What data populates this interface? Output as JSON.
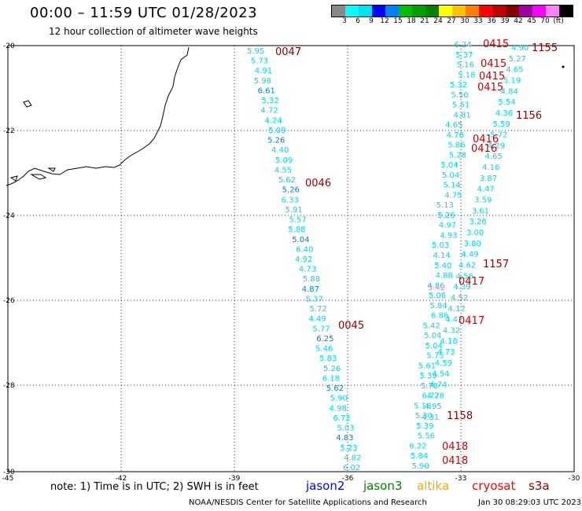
{
  "title": "00:00 – 11:59 UTC 01/28/2023",
  "subtitle": "12 hour collection of altimeter wave heights",
  "colorbar": {
    "colors": [
      "#888888",
      "#00ffff",
      "#00e0f0",
      "#0000ff",
      "#0080ff",
      "#00c000",
      "#00a000",
      "#008000",
      "#ffff00",
      "#ffc000",
      "#ff8000",
      "#ff0000",
      "#c00000",
      "#800000",
      "#a000a0",
      "#ff00ff",
      "#ff80ff",
      "#000000"
    ],
    "labels": [
      "3",
      "6",
      "9",
      "12",
      "15",
      "18",
      "21",
      "24",
      "27",
      "30",
      "33",
      "36",
      "39",
      "42",
      "45",
      "70",
      "(ft)"
    ]
  },
  "axes": {
    "x_ticks": [
      "-45",
      "-42",
      "-39",
      "-36",
      "-33",
      "-30"
    ],
    "y_ticks": [
      "-20",
      "-22",
      "-24",
      "-26",
      "-28",
      "-30"
    ]
  },
  "swh_colors": {
    "cyan": "#00d8e8",
    "blue": "#0080c8",
    "pink": "#ff80c0",
    "time": "#cc0000",
    "time_dark": "#8b0000"
  },
  "track_a": {
    "values": [
      "5.95",
      "5.73",
      "4.91",
      "5.98",
      "6.61",
      "5.32",
      "4.72",
      "4.24",
      "5.09",
      "5.26",
      "4.40",
      "5.09",
      "4.55",
      "5.62",
      "5.26",
      "6.33",
      "5.91",
      "5.57",
      "5.88",
      "5.04",
      "6.40",
      "4.92",
      "4.73",
      "5.88",
      "4.87",
      "5.37",
      "5.72",
      "4.49",
      "5.77",
      "6.25",
      "5.46",
      "5.83",
      "5.26",
      "6.18",
      "5.62",
      "5.90",
      "4.98",
      "6.72",
      "5.03",
      "4.83",
      "5.23",
      "4.82",
      "6.02"
    ],
    "times": [
      "0047",
      "0046",
      "0045"
    ]
  },
  "track_b": {
    "values": [
      "6.24",
      "5.37",
      "5.16",
      "5.18",
      "5.32",
      "5.50",
      "5.51",
      "4.81",
      "4.65",
      "4.76",
      "5.86",
      "5.28",
      "5.04",
      "5.04",
      "5.14",
      "4.75",
      "5.13",
      "5.26",
      "4.97",
      "4.93",
      "5.03",
      "4.14",
      "5.40",
      "4.88",
      "4.86",
      "5.06",
      "5.84",
      "6.86",
      "5.42",
      "5.04",
      "5.04",
      "5.75",
      "5.61",
      "5.39",
      "5.70",
      "6.72",
      "5.18",
      "5.30",
      "5.39",
      "5.56",
      "6.22",
      "5.84",
      "5.90"
    ],
    "times": [
      "0415",
      "0415",
      "0416",
      "0417",
      "0418",
      "0418"
    ]
  },
  "track_c": {
    "values": [
      "4.90",
      "5.27",
      "4.65",
      "5.19",
      "4.84",
      "5.54",
      "4.36",
      "5.59",
      "5.72",
      "4.29",
      "4.65",
      "4.16",
      "3.87",
      "4.47",
      "3.59",
      "3.61",
      "3.26",
      "3.00",
      "3.80",
      "4.49",
      "4.62",
      "4.56",
      "4.39",
      "4.52",
      "4.17",
      "4.42",
      "4.32",
      "4.18",
      "4.73",
      "4.59",
      "4.54",
      "4.74",
      "4.78",
      "4.95",
      "4.31"
    ],
    "times": [
      "1155",
      "1156",
      "1157",
      "1158"
    ]
  },
  "pink_value": "5.42",
  "note": "note:  1) Time is in UTC;  2) SWH is in feet",
  "satellites": [
    {
      "name": "jason2",
      "color": "#0000ff"
    },
    {
      "name": "jason3",
      "color": "#008000"
    },
    {
      "name": "altika",
      "color": "#ffa500"
    },
    {
      "name": "cryosat",
      "color": "#ff0000"
    },
    {
      "name": "s3a",
      "color": "#8b0000"
    }
  ],
  "footer": "NOAA/NESDIS Center for Satellite Applications and Research",
  "footer_time": "Jan 30 08:29:03 UTC 2023"
}
